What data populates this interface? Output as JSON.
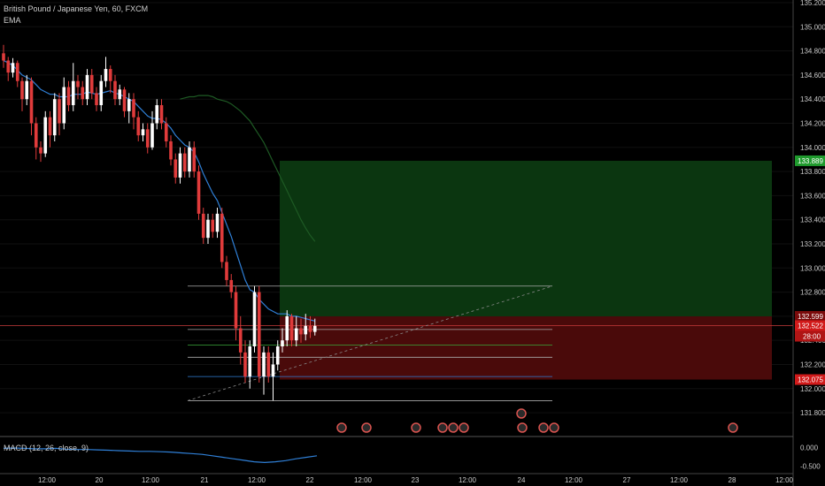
{
  "header": {
    "title": "British Pound / Japanese Yen, 60, FXCM",
    "indicator": "EMA"
  },
  "macd": {
    "label": "MACD (12, 26, close, 9)",
    "ticks": [
      "0.000",
      "-0.500"
    ]
  },
  "colors": {
    "up": "#ffffff",
    "down": "#e03b3b",
    "ema_fast": "#2f7fd6",
    "ema_slow": "#1e5a24",
    "target_zone": "#0b3610",
    "stop_zone": "#4a0a0a",
    "target_tag": "#1f9a2d",
    "stop_tag": "#d11a1a",
    "macd": "#2f7fd6"
  },
  "chart_data": {
    "type": "candlestick",
    "y_ticks": [
      "135.200",
      "135.000",
      "134.800",
      "134.600",
      "134.400",
      "134.200",
      "134.000",
      "133.800",
      "133.600",
      "133.400",
      "133.200",
      "133.000",
      "132.800",
      "132.600",
      "132.400",
      "132.200",
      "132.000",
      "131.800"
    ],
    "y_tick_values": [
      135.2,
      135.0,
      134.8,
      134.6,
      134.4,
      134.2,
      134.0,
      133.8,
      133.6,
      133.4,
      133.2,
      133.0,
      132.8,
      132.6,
      132.4,
      132.2,
      132.0,
      131.8
    ],
    "ylim": [
      131.72,
      135.2
    ],
    "x_ticks": [
      "12:00",
      "20",
      "12:00",
      "21",
      "12:00",
      "22",
      "12:00",
      "23",
      "12:00",
      "24",
      "12:00",
      "27",
      "12:00",
      "28",
      "12:00"
    ],
    "price_tags": {
      "target": "133.889",
      "entry": "132.599",
      "current": "132.522",
      "countdown": "28:00",
      "stop": "132.075"
    },
    "position": {
      "target": 133.889,
      "entry": 132.599,
      "stop": 132.075,
      "current": 132.522
    },
    "fib_levels": [
      132.85,
      132.49,
      132.36,
      132.26,
      132.1,
      131.9
    ],
    "candles": [
      [
        134.78,
        134.72,
        134.85,
        134.66
      ],
      [
        134.72,
        134.62,
        134.75,
        134.55
      ],
      [
        134.62,
        134.7,
        134.74,
        134.58
      ],
      [
        134.7,
        134.55,
        134.72,
        134.5
      ],
      [
        134.55,
        134.4,
        134.58,
        134.3
      ],
      [
        134.4,
        134.55,
        134.6,
        134.35
      ],
      [
        134.55,
        134.2,
        134.58,
        134.1
      ],
      [
        134.2,
        134.0,
        134.25,
        133.9
      ],
      [
        134.0,
        133.95,
        134.05,
        133.88
      ],
      [
        133.95,
        134.25,
        134.3,
        133.92
      ],
      [
        134.25,
        134.1,
        134.3,
        134.0
      ],
      [
        134.1,
        134.4,
        134.45,
        134.05
      ],
      [
        134.4,
        134.2,
        134.45,
        134.1
      ],
      [
        134.2,
        134.5,
        134.58,
        134.15
      ],
      [
        134.5,
        134.35,
        134.55,
        134.3
      ],
      [
        134.35,
        134.55,
        134.7,
        134.3
      ],
      [
        134.55,
        134.5,
        134.6,
        134.4
      ],
      [
        134.5,
        134.4,
        134.55,
        134.35
      ],
      [
        134.4,
        134.6,
        134.65,
        134.35
      ],
      [
        134.6,
        134.45,
        134.65,
        134.4
      ],
      [
        134.45,
        134.35,
        134.5,
        134.3
      ],
      [
        134.35,
        134.55,
        134.6,
        134.3
      ],
      [
        134.55,
        134.65,
        134.75,
        134.5
      ],
      [
        134.65,
        134.55,
        134.68,
        134.45
      ],
      [
        134.55,
        134.4,
        134.6,
        134.35
      ],
      [
        134.4,
        134.48,
        134.52,
        134.35
      ],
      [
        134.48,
        134.3,
        134.5,
        134.25
      ],
      [
        134.3,
        134.4,
        134.45,
        134.2
      ],
      [
        134.4,
        134.25,
        134.45,
        134.15
      ],
      [
        134.25,
        134.1,
        134.3,
        134.05
      ],
      [
        134.1,
        134.15,
        134.2,
        134.05
      ],
      [
        134.15,
        134.0,
        134.2,
        133.95
      ],
      [
        134.0,
        134.2,
        134.3,
        133.98
      ],
      [
        134.2,
        134.35,
        134.4,
        134.15
      ],
      [
        134.35,
        134.2,
        134.4,
        134.15
      ],
      [
        134.2,
        134.05,
        134.25,
        134.0
      ],
      [
        134.05,
        133.9,
        134.1,
        133.85
      ],
      [
        133.9,
        133.75,
        133.95,
        133.7
      ],
      [
        133.75,
        133.95,
        134.0,
        133.7
      ],
      [
        133.95,
        133.8,
        134.0,
        133.75
      ],
      [
        133.8,
        134.0,
        134.05,
        133.75
      ],
      [
        134.0,
        133.8,
        134.05,
        133.75
      ],
      [
        133.8,
        133.45,
        133.85,
        133.4
      ],
      [
        133.45,
        133.25,
        133.5,
        133.2
      ],
      [
        133.25,
        133.4,
        133.45,
        133.2
      ],
      [
        133.4,
        133.3,
        133.45,
        133.25
      ],
      [
        133.3,
        133.45,
        133.5,
        133.25
      ],
      [
        133.45,
        133.05,
        133.5,
        133.0
      ],
      [
        133.05,
        132.9,
        133.1,
        132.85
      ],
      [
        132.9,
        132.8,
        132.95,
        132.75
      ],
      [
        132.8,
        132.5,
        132.85,
        132.4
      ],
      [
        132.5,
        132.3,
        132.6,
        132.2
      ],
      [
        132.3,
        132.1,
        132.4,
        132.05
      ],
      [
        132.1,
        132.35,
        132.4,
        132.0
      ],
      [
        132.35,
        132.8,
        132.85,
        132.3
      ],
      [
        132.8,
        132.1,
        132.85,
        132.05
      ],
      [
        132.1,
        132.3,
        132.35,
        131.95
      ],
      [
        132.3,
        132.1,
        132.35,
        132.05
      ],
      [
        132.1,
        132.2,
        132.3,
        131.9
      ],
      [
        132.2,
        132.35,
        132.4,
        132.15
      ],
      [
        132.35,
        132.4,
        132.5,
        132.3
      ],
      [
        132.4,
        132.6,
        132.65,
        132.35
      ],
      [
        132.6,
        132.4,
        132.62,
        132.35
      ],
      [
        132.4,
        132.5,
        132.6,
        132.35
      ],
      [
        132.5,
        132.45,
        132.58,
        132.38
      ],
      [
        132.45,
        132.52,
        132.62,
        132.4
      ],
      [
        132.52,
        132.47,
        132.6,
        132.42
      ],
      [
        132.47,
        132.52,
        132.58,
        132.44
      ]
    ],
    "ema_fast": [
      134.72,
      134.7,
      134.68,
      134.64,
      134.6,
      134.58,
      134.56,
      134.52,
      134.48,
      134.46,
      134.44,
      134.44,
      134.42,
      134.42,
      134.42,
      134.44,
      134.44,
      134.44,
      134.46,
      134.45,
      134.44,
      134.45,
      134.46,
      134.47,
      134.45,
      134.44,
      134.42,
      134.4,
      134.38,
      134.34,
      134.3,
      134.26,
      134.24,
      134.24,
      134.23,
      134.2,
      134.16,
      134.1,
      134.06,
      134.02,
      134.0,
      133.96,
      133.88,
      133.78,
      133.7,
      133.62,
      133.56,
      133.46,
      133.36,
      133.26,
      133.14,
      133.02,
      132.9,
      132.82,
      132.8,
      132.74,
      132.7,
      132.66,
      132.64,
      132.62,
      132.62,
      132.62,
      132.6,
      132.6,
      132.59,
      132.58,
      132.57,
      132.56
    ],
    "ema_slow": [
      134.4,
      134.41,
      134.42,
      134.42,
      134.43,
      134.43,
      134.43,
      134.42,
      134.4,
      134.39,
      134.38,
      134.36,
      134.33,
      134.3,
      134.26,
      134.22,
      134.16,
      134.1,
      134.04,
      133.96,
      133.88,
      133.8,
      133.72,
      133.64,
      133.56,
      133.48,
      133.4,
      133.33,
      133.27,
      133.22
    ],
    "macd_values": [
      -0.02,
      -0.01,
      -0.02,
      -0.03,
      -0.03,
      -0.02,
      -0.04,
      -0.05,
      -0.05,
      -0.06,
      -0.07,
      -0.08,
      -0.09,
      -0.1,
      -0.1,
      -0.11,
      -0.12,
      -0.14,
      -0.16,
      -0.18,
      -0.22,
      -0.26,
      -0.3,
      -0.34,
      -0.38,
      -0.4,
      -0.38,
      -0.35,
      -0.3,
      -0.26,
      -0.22
    ],
    "macd_ylim": [
      -0.7,
      0.3
    ]
  }
}
